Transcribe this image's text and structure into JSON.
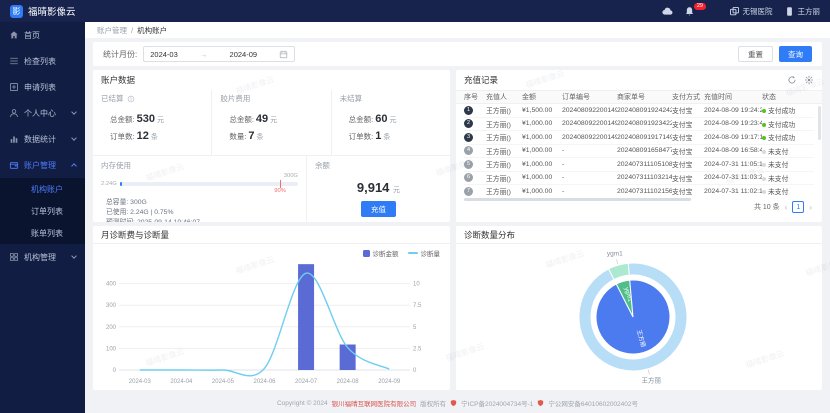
{
  "app": {
    "logo_text": "福晴影像云",
    "logo_glyph": "影",
    "watermark": "福晴影像云",
    "accent": "#2f7cf6"
  },
  "header": {
    "notification_count": "29",
    "org_name": "无锡医院",
    "user_name": "王方丽"
  },
  "sidebar": {
    "items": [
      {
        "id": "home",
        "label": "首页",
        "icon": "home-icon"
      },
      {
        "id": "exam-list",
        "label": "检查列表",
        "icon": "list-icon"
      },
      {
        "id": "apply-list",
        "label": "申请列表",
        "icon": "form-icon"
      },
      {
        "id": "personal-center",
        "label": "个人中心",
        "icon": "user-icon",
        "expandable": true
      },
      {
        "id": "data-statistics",
        "label": "数据统计",
        "icon": "chart-icon",
        "expandable": true
      },
      {
        "id": "account-management",
        "label": "账户管理",
        "icon": "wallet-icon",
        "expandable": true,
        "expanded": true,
        "active": true,
        "children": [
          {
            "id": "org-account",
            "label": "机构账户",
            "active": true
          },
          {
            "id": "order-list",
            "label": "订单列表"
          },
          {
            "id": "bill-list",
            "label": "账单列表"
          }
        ]
      },
      {
        "id": "org-management",
        "label": "机构管理",
        "icon": "org-icon",
        "expandable": true
      }
    ]
  },
  "breadcrumb": {
    "section": "账户管理",
    "divider": "/",
    "page": "机构账户"
  },
  "filter": {
    "label": "统计月份:",
    "start": "2024-03",
    "separator": "→",
    "end": "2024-09",
    "reset_label": "重置",
    "query_label": "查询"
  },
  "account": {
    "title": "账户数据",
    "stats": [
      {
        "label": "已结算",
        "rows": [
          {
            "k": "总金额:",
            "v": "530",
            "unit": "元"
          },
          {
            "k": "订单数:",
            "v": "12",
            "unit": "条"
          }
        ]
      },
      {
        "label": "胶片费用",
        "rows": [
          {
            "k": "总金额:",
            "v": "49",
            "unit": "元"
          },
          {
            "k": "数量:",
            "v": "7",
            "unit": "条"
          }
        ]
      },
      {
        "label": "未结算",
        "rows": [
          {
            "k": "总金额:",
            "v": "60",
            "unit": "元"
          },
          {
            "k": "订单数:",
            "v": "1",
            "unit": "条"
          }
        ]
      }
    ],
    "memory": {
      "title": "内存使用",
      "used_label": "2.24G",
      "capacity_label": "300G",
      "marker": "90%",
      "percent_used": 0.75,
      "lines": [
        {
          "k": "总容量:",
          "v": "300G"
        },
        {
          "k": "已使用:",
          "v": "2.24G | 0.75%"
        },
        {
          "k": "预测时间:",
          "v": "2025-09-14 10:46:07"
        }
      ]
    },
    "balance": {
      "title": "余额",
      "value": "9,914",
      "unit": "元",
      "button": "充值"
    }
  },
  "recharge": {
    "title": "充值记录",
    "columns": [
      "序号",
      "充值人",
      "金额",
      "订单编号",
      "商家单号",
      "支付方式",
      "充值时间",
      "状态"
    ],
    "rows": [
      {
        "no": "1",
        "dark": true,
        "name": "王方丽()",
        "amount": "¥1,500.00",
        "order": "2024080922001495...",
        "merchant": "2024080919242423...",
        "method": "支付宝",
        "time": "2024-08-09 19:24:24",
        "status": "支付成功",
        "status_ok": true
      },
      {
        "no": "2",
        "dark": true,
        "name": "王方丽()",
        "amount": "¥1,000.00",
        "order": "2024080922001495...",
        "merchant": "2024080919234222...",
        "method": "支付宝",
        "time": "2024-08-09 19:23:42",
        "status": "支付成功",
        "status_ok": true
      },
      {
        "no": "3",
        "dark": true,
        "name": "王方丽()",
        "amount": "¥1,000.00",
        "order": "2024080922001495...",
        "merchant": "2024080919171495...",
        "method": "支付宝",
        "time": "2024-08-09 19:17:14",
        "status": "支付成功",
        "status_ok": true
      },
      {
        "no": "4",
        "dark": false,
        "name": "王方丽()",
        "amount": "¥1,000.00",
        "order": "-",
        "merchant": "2024080916584775...",
        "method": "支付宝",
        "time": "2024-08-09 16:58:47",
        "status": "未支付",
        "status_ok": false
      },
      {
        "no": "5",
        "dark": false,
        "name": "王方丽()",
        "amount": "¥1,000.00",
        "order": "-",
        "merchant": "2024073111051087...",
        "method": "支付宝",
        "time": "2024-07-31 11:05:10",
        "status": "未支付",
        "status_ok": false
      },
      {
        "no": "6",
        "dark": false,
        "name": "王方丽()",
        "amount": "¥1,000.00",
        "order": "-",
        "merchant": "2024073111032145...",
        "method": "支付宝",
        "time": "2024-07-31 11:03:21",
        "status": "未支付",
        "status_ok": false
      },
      {
        "no": "7",
        "dark": false,
        "name": "王方丽()",
        "amount": "¥1,000.00",
        "order": "-",
        "merchant": "2024073111021563...",
        "method": "支付宝",
        "time": "2024-07-31 11:02:15",
        "status": "未支付",
        "status_ok": false
      }
    ],
    "total_text": "共 10 条",
    "page": "1"
  },
  "chart_data": [
    {
      "type": "bar+line",
      "title": "月诊断费与诊断量",
      "categories": [
        "2024-03",
        "2024-04",
        "2024-05",
        "2024-06",
        "2024-07",
        "2024-08",
        "2024-09"
      ],
      "series": [
        {
          "name": "诊断金额",
          "type": "bar",
          "axis": "left",
          "color": "#5b6bd5",
          "values": [
            0,
            0,
            0,
            0,
            490,
            118,
            0
          ]
        },
        {
          "name": "诊断量",
          "type": "line",
          "axis": "right",
          "color": "#6fcdf1",
          "values": [
            0,
            0,
            0,
            0.2,
            11.2,
            2.6,
            0.1
          ]
        }
      ],
      "left_axis": {
        "ticks": [
          0,
          100,
          200,
          300,
          400
        ],
        "max": 500
      },
      "right_axis": {
        "ticks": [
          0,
          2.5,
          5,
          7.5,
          10
        ],
        "max": 12.5
      },
      "legend_position": "top-right",
      "grid": true
    },
    {
      "type": "pie",
      "title": "诊断数量分布",
      "start_angle": -27,
      "rings": [
        {
          "name": "outer",
          "r0": 42,
          "r1": 54,
          "slices": [
            {
              "label": "ygm1",
              "value": 6.1,
              "color": "#abe9d1"
            },
            {
              "label": "王方丽",
              "value": 93.9,
              "color": "#b7ddf7"
            }
          ]
        },
        {
          "name": "inner",
          "r0": 0,
          "r1": 37,
          "slices": [
            {
              "label": "ygm1",
              "value": 6.1,
              "color": "#4fbe8a"
            },
            {
              "label": "王方丽",
              "value": 93.9,
              "color": "#4c7bf0"
            }
          ]
        }
      ]
    }
  ],
  "footer": {
    "copyright_prefix": "Copyright © 2024",
    "company": "银川福晴互联网医院有限公司",
    "copyright_suffix": "版权所有",
    "icp": "宁ICP备2024004734号-1",
    "police": "宁公网安备64010602002402号"
  }
}
